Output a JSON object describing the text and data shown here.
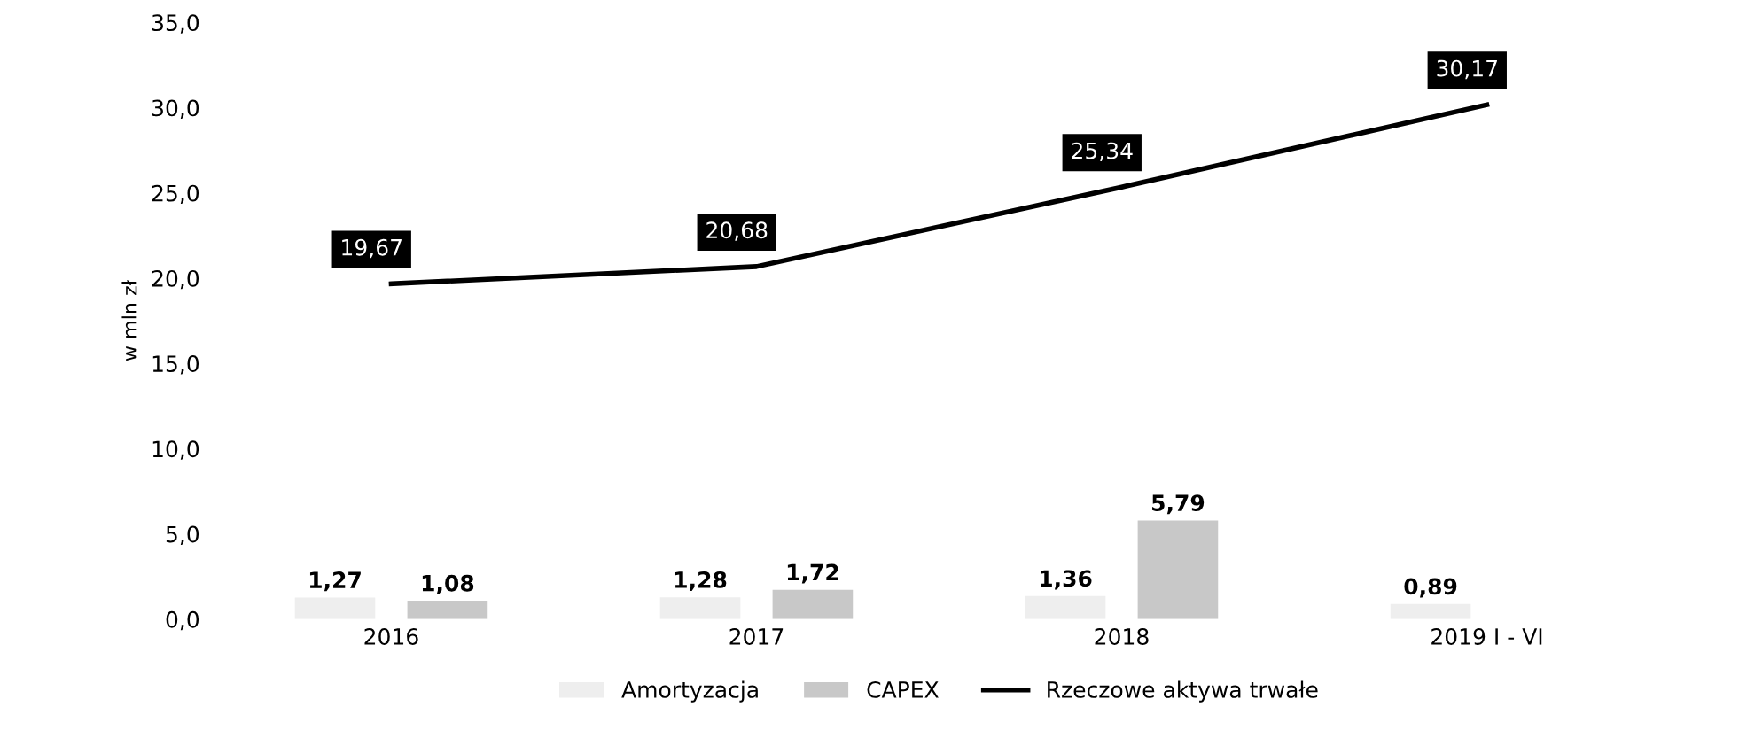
{
  "chart_data": {
    "type": "bar",
    "categories": [
      "2016",
      "2017",
      "2018",
      "2019 I - VI"
    ],
    "ylabel": "w mln zł",
    "ylim": [
      0,
      35
    ],
    "yticks": [
      {
        "value": 0,
        "label": "0,0"
      },
      {
        "value": 5,
        "label": "5,0"
      },
      {
        "value": 10,
        "label": "10,0"
      },
      {
        "value": 15,
        "label": "15,0"
      },
      {
        "value": 20,
        "label": "20,0"
      },
      {
        "value": 25,
        "label": "25,0"
      },
      {
        "value": 30,
        "label": "30,0"
      },
      {
        "value": 35,
        "label": "35,0"
      }
    ],
    "series": [
      {
        "name": "Amortyzacja",
        "color": "#eeeeee",
        "values": [
          1.27,
          1.28,
          1.36,
          0.89
        ],
        "value_labels": [
          "1,27",
          "1,28",
          "1,36",
          "0,89"
        ]
      },
      {
        "name": "CAPEX",
        "color": "#c8c8c8",
        "values": [
          1.08,
          1.72,
          5.79,
          null
        ],
        "value_labels": [
          "1,08",
          "1,72",
          "5,79",
          null
        ]
      },
      {
        "name": "Rzeczowe aktywa trwałe",
        "type": "line",
        "color": "#000000",
        "values": [
          19.67,
          20.68,
          25.34,
          30.17
        ],
        "value_labels": [
          "19,67",
          "20,68",
          "25,34",
          "30,17"
        ]
      }
    ],
    "grid": false,
    "legend": "bottom",
    "marker": "none",
    "line_style": "solid"
  }
}
